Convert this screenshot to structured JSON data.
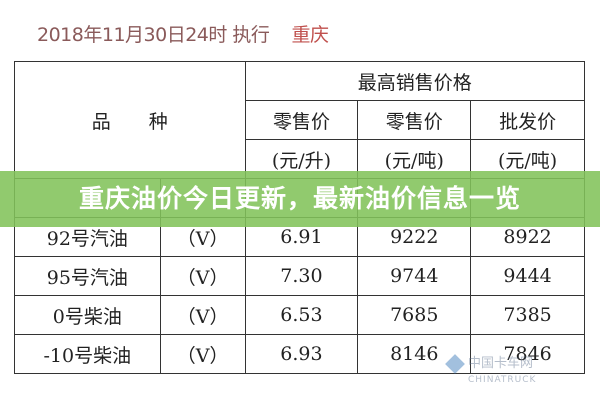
{
  "title": {
    "date": "2018年11月30日24时 执行",
    "city": "重庆"
  },
  "table": {
    "header_product": "品　　种",
    "header_group": "最高销售价格",
    "columns": [
      "零售价",
      "零售价",
      "批发价"
    ],
    "units": [
      "(元/升)",
      "(元/吨)",
      "(元/吨)"
    ],
    "rows": [
      {
        "product": "",
        "grade": "",
        "retail_l": "",
        "retail_t": "",
        "wholesale": ""
      },
      {
        "product": "92号汽油",
        "grade": "（V）",
        "retail_l": "6.91",
        "retail_t": "9222",
        "wholesale": "8922"
      },
      {
        "product": "95号汽油",
        "grade": "（V）",
        "retail_l": "7.30",
        "retail_t": "9744",
        "wholesale": "9444"
      },
      {
        "product": "0号柴油",
        "grade": "（V）",
        "retail_l": "6.53",
        "retail_t": "7685",
        "wholesale": "7385"
      },
      {
        "product": "-10号柴油",
        "grade": "（V）",
        "retail_l": "6.93",
        "retail_t": "8146",
        "wholesale": "7846"
      }
    ]
  },
  "banner": {
    "text": "重庆油价今日更新，最新油价信息一览",
    "color": "#82c35a"
  },
  "watermark": {
    "name": "中国卡车网",
    "sub": "CHINATRUCK"
  }
}
